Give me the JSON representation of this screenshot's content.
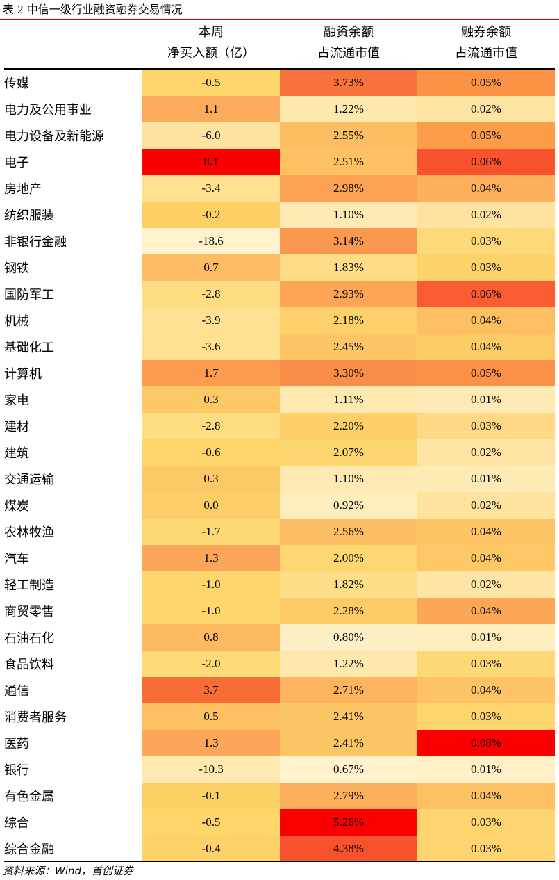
{
  "table_label": "表",
  "table_number": "2",
  "table_title": "中信一级行业融资融券交易情况",
  "headers": [
    {
      "line1": "本周",
      "line2": "净买入额（亿）"
    },
    {
      "line1": "融资余额",
      "line2": "占流通市值"
    },
    {
      "line1": "融券余额",
      "line2": "占流通市值"
    }
  ],
  "rows": [
    {
      "name": "传媒",
      "net": "-0.5",
      "margin": "3.73%",
      "short": "0.05%",
      "c1": "#fdd56a",
      "c2": "#f8743c",
      "c3": "#fb9245"
    },
    {
      "name": "电力及公用事业",
      "net": "1.1",
      "margin": "1.22%",
      "short": "0.02%",
      "c1": "#fcab5c",
      "c2": "#fee8ac",
      "c3": "#fee4a3"
    },
    {
      "name": "电力设备及新能源",
      "net": "-6.0",
      "margin": "2.55%",
      "short": "0.05%",
      "c1": "#fee3a0",
      "c2": "#fdbd62",
      "c3": "#fb9d49"
    },
    {
      "name": "电子",
      "net": "8.1",
      "margin": "2.51%",
      "short": "0.06%",
      "c1": "#fa0000",
      "c2": "#fdc163",
      "c3": "#f9532e"
    },
    {
      "name": "房地产",
      "net": "-3.4",
      "margin": "2.98%",
      "short": "0.04%",
      "c1": "#fee08e",
      "c2": "#fba254",
      "c3": "#fcb05e"
    },
    {
      "name": "纺织服装",
      "net": "-0.2",
      "margin": "1.10%",
      "short": "0.02%",
      "c1": "#fdd066",
      "c2": "#feeab2",
      "c3": "#fee2a0"
    },
    {
      "name": "非银行金融",
      "net": "-18.6",
      "margin": "3.14%",
      "short": "0.03%",
      "c1": "#fff2cc",
      "c2": "#fb9850",
      "c3": "#fdd97a"
    },
    {
      "name": "钢铁",
      "net": "0.7",
      "margin": "1.83%",
      "short": "0.03%",
      "c1": "#fdbc63",
      "c2": "#fedd86",
      "c3": "#fdd269"
    },
    {
      "name": "国防军工",
      "net": "-2.8",
      "margin": "2.93%",
      "short": "0.06%",
      "c1": "#fedc81",
      "c2": "#fca556",
      "c3": "#f95c31"
    },
    {
      "name": "机械",
      "net": "-3.9",
      "margin": "2.18%",
      "short": "0.04%",
      "c1": "#fee193",
      "c2": "#fdd06a",
      "c3": "#fcbf62"
    },
    {
      "name": "基础化工",
      "net": "-3.6",
      "margin": "2.45%",
      "short": "0.04%",
      "c1": "#fee08f",
      "c2": "#fdc565",
      "c3": "#fdcb66"
    },
    {
      "name": "计算机",
      "net": "1.7",
      "margin": "3.30%",
      "short": "0.05%",
      "c1": "#fb9c4f",
      "c2": "#fa8d48",
      "c3": "#fb9147"
    },
    {
      "name": "家电",
      "net": "0.3",
      "margin": "1.11%",
      "short": "0.01%",
      "c1": "#fdc866",
      "c2": "#feeab1",
      "c3": "#feeab4"
    },
    {
      "name": "建材",
      "net": "-2.8",
      "margin": "2.20%",
      "short": "0.03%",
      "c1": "#fedc81",
      "c2": "#fdcf69",
      "c3": "#fed884"
    },
    {
      "name": "建筑",
      "net": "-0.6",
      "margin": "2.07%",
      "short": "0.02%",
      "c1": "#fdd56b",
      "c2": "#fdd56e",
      "c3": "#fee3a3"
    },
    {
      "name": "交通运输",
      "net": "0.3",
      "margin": "1.10%",
      "short": "0.01%",
      "c1": "#fdc866",
      "c2": "#feeab2",
      "c3": "#feeab4"
    },
    {
      "name": "煤炭",
      "net": "0.0",
      "margin": "0.92%",
      "short": "0.02%",
      "c1": "#fdcd67",
      "c2": "#feeebb",
      "c3": "#fee29e"
    },
    {
      "name": "农林牧渔",
      "net": "-1.7",
      "margin": "2.56%",
      "short": "0.04%",
      "c1": "#fdd973",
      "c2": "#fdbd62",
      "c3": "#fdc465"
    },
    {
      "name": "汽车",
      "net": "1.3",
      "margin": "2.00%",
      "short": "0.04%",
      "c1": "#fca65a",
      "c2": "#fed771",
      "c3": "#fdc766"
    },
    {
      "name": "轻工制造",
      "net": "-1.0",
      "margin": "1.82%",
      "short": "0.02%",
      "c1": "#fdd76e",
      "c2": "#fedd87",
      "c3": "#fee4a5"
    },
    {
      "name": "商贸零售",
      "net": "-1.0",
      "margin": "2.28%",
      "short": "0.04%",
      "c1": "#fdd76e",
      "c2": "#fdcb66",
      "c3": "#fca756"
    },
    {
      "name": "石油石化",
      "net": "0.8",
      "margin": "0.80%",
      "short": "0.01%",
      "c1": "#fdb960",
      "c2": "#fef0c5",
      "c3": "#feedbd"
    },
    {
      "name": "食品饮料",
      "net": "-2.0",
      "margin": "1.22%",
      "short": "0.03%",
      "c1": "#fedb78",
      "c2": "#fee8ac",
      "c3": "#fed777"
    },
    {
      "name": "通信",
      "net": "3.7",
      "margin": "2.71%",
      "short": "0.04%",
      "c1": "#f86c35",
      "c2": "#fcb45f",
      "c3": "#fdc364"
    },
    {
      "name": "消费者服务",
      "net": "0.5",
      "margin": "2.41%",
      "short": "0.03%",
      "c1": "#fdc162",
      "c2": "#fdc665",
      "c3": "#fed46c"
    },
    {
      "name": "医药",
      "net": "1.3",
      "margin": "2.41%",
      "short": "0.08%",
      "c1": "#fca65a",
      "c2": "#fdc665",
      "c3": "#fa0000"
    },
    {
      "name": "银行",
      "net": "-10.3",
      "margin": "0.67%",
      "short": "0.01%",
      "c1": "#feeab0",
      "c2": "#fff2cc",
      "c3": "#fff0c8"
    },
    {
      "name": "有色金属",
      "net": "-0.1",
      "margin": "2.79%",
      "short": "0.04%",
      "c1": "#fdd066",
      "c2": "#fcaf5d",
      "c3": "#fdc163"
    },
    {
      "name": "综合",
      "net": "-0.5",
      "margin": "5.26%",
      "short": "0.03%",
      "c1": "#fdd56a",
      "c2": "#fa0000",
      "c3": "#fdd470"
    },
    {
      "name": "综合金融",
      "net": "-0.4",
      "margin": "4.38%",
      "short": "0.03%",
      "c1": "#fdd369",
      "c2": "#f8522c",
      "c3": "#fdd46f"
    }
  ],
  "source": "资料来源：Wind，首创证券"
}
